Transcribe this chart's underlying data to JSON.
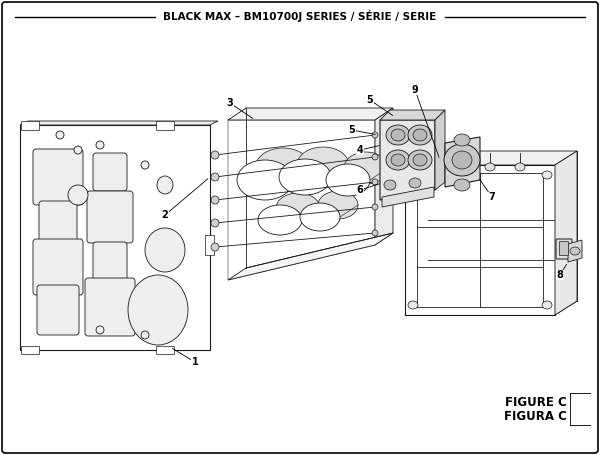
{
  "title": "BLACK MAX – BM10700J SERIES / SÉRIE / SERIE",
  "figure_label1": "FIGURE C",
  "figure_label2": "FIGURA C",
  "bg_color": "#ffffff",
  "lc": "#1a1a1a",
  "fc_panel": "#f5f5f5",
  "fc_mid": "#f0f0f0",
  "fc_box": "#f5f5f5",
  "fc_carb": "#e0e0e0",
  "fc_hole": "#e8e8e8",
  "title_fontsize": 7.5,
  "label_fontsize": 7.0
}
